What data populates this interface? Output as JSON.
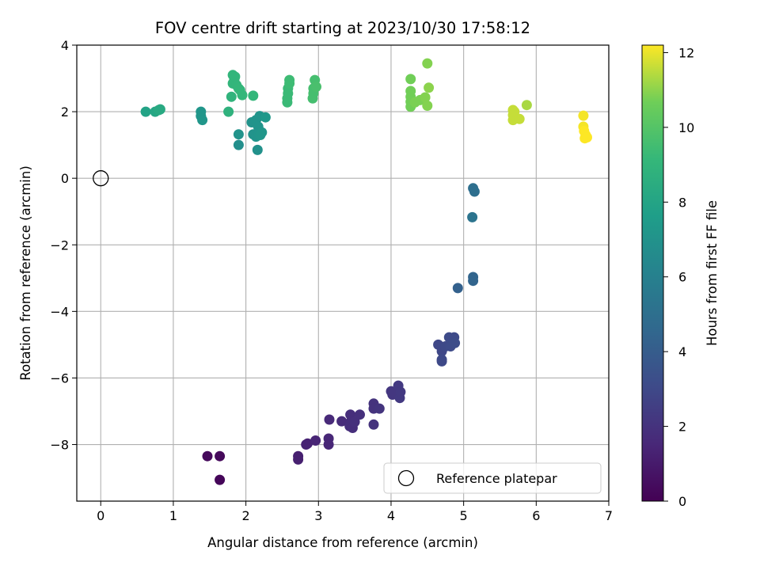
{
  "chart_data": {
    "type": "scatter",
    "title": "FOV centre drift starting at 2023/10/30 17:58:12",
    "xlabel": "Angular distance from reference (arcmin)",
    "ylabel": "Rotation from reference (arcmin)",
    "xlim": [
      -0.33,
      7.0
    ],
    "ylim": [
      -9.7,
      4.0
    ],
    "xticks": [
      0,
      1,
      2,
      3,
      4,
      5,
      6,
      7
    ],
    "yticks": [
      -8,
      -6,
      -4,
      -2,
      0,
      2,
      4
    ],
    "xtick_labels": [
      "0",
      "1",
      "2",
      "3",
      "4",
      "5",
      "6",
      "7"
    ],
    "ytick_labels": [
      "−8",
      "−6",
      "−4",
      "−2",
      "0",
      "2",
      "4"
    ],
    "grid": true,
    "legend": {
      "position": "lower-right",
      "entries": [
        "Reference platepar"
      ]
    },
    "reference_point": {
      "label": "Reference platepar",
      "x": 0,
      "y": 0
    },
    "colorbar": {
      "label": "Hours from first FF file",
      "colormap": "viridis",
      "range": [
        0,
        12.2
      ],
      "ticks": [
        0,
        2,
        4,
        6,
        8,
        10,
        12
      ],
      "tick_labels": [
        "0",
        "2",
        "4",
        "6",
        "8",
        "10",
        "12"
      ]
    },
    "series": [
      {
        "points": [
          [
            1.47,
            -8.35,
            0.3
          ],
          [
            1.64,
            -8.35,
            0.3
          ],
          [
            1.64,
            -9.06,
            0.2
          ],
          [
            2.72,
            -8.35,
            1.2
          ],
          [
            2.72,
            -8.45,
            1.2
          ],
          [
            2.83,
            -8.0,
            1.3
          ],
          [
            2.85,
            -7.97,
            1.3
          ],
          [
            2.96,
            -7.88,
            1.4
          ],
          [
            3.14,
            -7.82,
            1.5
          ],
          [
            3.14,
            -8.0,
            1.5
          ],
          [
            3.15,
            -7.25,
            1.6
          ],
          [
            3.32,
            -7.3,
            1.7
          ],
          [
            3.43,
            -7.45,
            1.8
          ],
          [
            3.44,
            -7.1,
            1.8
          ],
          [
            3.45,
            -7.3,
            1.8
          ],
          [
            3.47,
            -7.5,
            1.8
          ],
          [
            3.5,
            -7.32,
            1.9
          ],
          [
            3.57,
            -7.1,
            1.9
          ],
          [
            3.76,
            -6.77,
            2.0
          ],
          [
            3.76,
            -6.92,
            2.0
          ],
          [
            3.76,
            -7.4,
            2.0
          ],
          [
            3.84,
            -6.92,
            2.1
          ],
          [
            4.0,
            -6.4,
            2.2
          ],
          [
            4.02,
            -6.5,
            2.2
          ],
          [
            4.05,
            -6.45,
            2.2
          ],
          [
            4.1,
            -6.23,
            2.3
          ],
          [
            4.12,
            -6.6,
            2.3
          ],
          [
            4.13,
            -6.42,
            2.3
          ],
          [
            4.65,
            -5.0,
            2.9
          ],
          [
            4.7,
            -5.2,
            2.9
          ],
          [
            4.7,
            -5.45,
            3.0
          ],
          [
            4.7,
            -5.5,
            3.0
          ],
          [
            4.75,
            -5.05,
            3.0
          ],
          [
            4.8,
            -4.78,
            3.1
          ],
          [
            4.82,
            -5.05,
            3.1
          ],
          [
            4.87,
            -4.78,
            3.1
          ],
          [
            4.88,
            -4.95,
            3.2
          ],
          [
            4.92,
            -3.3,
            4.2
          ],
          [
            5.13,
            -2.97,
            4.4
          ],
          [
            5.13,
            -3.08,
            4.4
          ],
          [
            5.12,
            -1.17,
            5.3
          ],
          [
            5.13,
            -0.3,
            5.0
          ],
          [
            5.15,
            -0.4,
            5.0
          ],
          [
            0.62,
            2.0,
            7.9
          ],
          [
            0.75,
            2.0,
            8.1
          ],
          [
            0.8,
            2.05,
            8.3
          ],
          [
            0.82,
            2.07,
            8.3
          ],
          [
            1.38,
            1.87,
            7.2
          ],
          [
            1.38,
            2.0,
            7.2
          ],
          [
            1.4,
            1.75,
            7.2
          ],
          [
            1.9,
            1.0,
            6.8
          ],
          [
            1.9,
            1.32,
            7.0
          ],
          [
            2.08,
            1.68,
            7.0
          ],
          [
            2.1,
            1.32,
            7.0
          ],
          [
            2.14,
            1.25,
            7.1
          ],
          [
            2.14,
            1.75,
            7.1
          ],
          [
            2.16,
            0.85,
            6.9
          ],
          [
            2.17,
            1.55,
            7.1
          ],
          [
            2.18,
            1.35,
            7.1
          ],
          [
            2.19,
            1.87,
            7.1
          ],
          [
            2.2,
            1.3,
            7.2
          ],
          [
            2.22,
            1.38,
            7.2
          ],
          [
            2.27,
            1.83,
            7.3
          ],
          [
            1.76,
            2.0,
            8.8
          ],
          [
            1.8,
            2.45,
            8.9
          ],
          [
            1.82,
            2.85,
            9.0
          ],
          [
            1.82,
            3.1,
            9.0
          ],
          [
            1.84,
            2.95,
            9.0
          ],
          [
            1.85,
            3.05,
            9.0
          ],
          [
            1.87,
            2.8,
            9.0
          ],
          [
            1.9,
            2.7,
            9.1
          ],
          [
            1.92,
            2.65,
            9.1
          ],
          [
            1.95,
            2.5,
            9.1
          ],
          [
            2.1,
            2.48,
            9.1
          ],
          [
            2.57,
            2.28,
            9.3
          ],
          [
            2.57,
            2.4,
            9.3
          ],
          [
            2.58,
            2.55,
            9.3
          ],
          [
            2.58,
            2.7,
            9.3
          ],
          [
            2.6,
            2.85,
            9.4
          ],
          [
            2.6,
            2.95,
            9.4
          ],
          [
            2.92,
            2.4,
            9.6
          ],
          [
            2.93,
            2.55,
            9.6
          ],
          [
            2.93,
            2.7,
            9.6
          ],
          [
            2.95,
            2.95,
            9.6
          ],
          [
            2.97,
            2.75,
            9.7
          ],
          [
            4.27,
            2.15,
            10.7
          ],
          [
            4.27,
            2.3,
            10.7
          ],
          [
            4.27,
            2.45,
            10.7
          ],
          [
            4.27,
            2.62,
            10.7
          ],
          [
            4.27,
            2.98,
            10.7
          ],
          [
            4.33,
            2.28,
            10.8
          ],
          [
            4.4,
            2.35,
            10.8
          ],
          [
            4.47,
            2.43,
            10.9
          ],
          [
            4.5,
            2.18,
            10.9
          ],
          [
            4.5,
            3.45,
            10.9
          ],
          [
            4.52,
            2.72,
            11.0
          ],
          [
            5.68,
            1.75,
            11.6
          ],
          [
            5.68,
            1.9,
            11.6
          ],
          [
            5.68,
            2.05,
            11.6
          ],
          [
            5.7,
            2.0,
            11.6
          ],
          [
            5.77,
            1.78,
            11.6
          ],
          [
            5.87,
            2.2,
            11.3
          ],
          [
            6.65,
            1.88,
            12.1
          ],
          [
            6.65,
            1.55,
            12.1
          ],
          [
            6.66,
            1.42,
            12.2
          ],
          [
            6.67,
            1.2,
            12.2
          ],
          [
            6.68,
            1.3,
            12.2
          ],
          [
            6.7,
            1.23,
            12.2
          ]
        ]
      }
    ]
  }
}
